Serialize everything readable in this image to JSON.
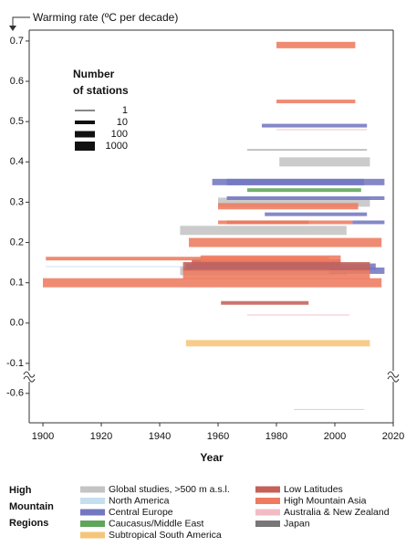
{
  "chart_data": {
    "type": "range-bar",
    "y_label": "Warming rate (ºC per decade)",
    "x_label": "Year",
    "xlim": [
      1895.3,
      2020
    ],
    "xticks": [
      1900,
      1920,
      1940,
      1960,
      1980,
      2000,
      2020
    ],
    "ylim": [
      -0.673,
      0.727
    ],
    "ybreak": [
      -0.13,
      -0.56
    ],
    "yticks": [
      0.7,
      0.6,
      0.5,
      0.4,
      0.3,
      0.2,
      0.1,
      {
        "value": 0,
        "label": "0.0"
      },
      -0.1,
      -0.6
    ],
    "size_legend": {
      "title": [
        "Number",
        "of stations"
      ],
      "values": [
        1,
        10,
        100,
        1000
      ]
    },
    "legend_title": [
      "High",
      "Mountain",
      "Regions"
    ],
    "series": [
      {
        "name": "Global studies, >500 m a.s.l.",
        "color": "#c4c4c4",
        "values": [
          0.4,
          0.3,
          0.23,
          0.13
        ],
        "start": [
          1981,
          1960,
          1947,
          1947
        ],
        "end": [
          2012,
          2012,
          2004,
          2004
        ],
        "stations": [
          1000,
          1000,
          1000,
          1000
        ]
      },
      {
        "name": "North America",
        "color": "#c6dff0",
        "values": [
          0.14
        ],
        "start": [
          1901
        ],
        "end": [
          1991
        ],
        "stations": [
          1
        ]
      },
      {
        "name": "Central Europe",
        "color": "#7478c0",
        "values": [
          0.49,
          0.35,
          0.35,
          0.31,
          0.27,
          0.25,
          0.14,
          0.13
        ],
        "start": [
          1975,
          1958,
          1963,
          1963,
          1976,
          2006,
          1949,
          1998
        ],
        "end": [
          2011,
          2017,
          2010,
          2017,
          2011,
          2017,
          2014,
          2017
        ],
        "stations": [
          10,
          100,
          100,
          10,
          10,
          10,
          100,
          100
        ]
      },
      {
        "name": "Caucasus/Middle East",
        "color": "#5fa55a",
        "values": [
          0.33
        ],
        "start": [
          1970
        ],
        "end": [
          2009
        ],
        "stations": [
          10
        ]
      },
      {
        "name": "Subtropical South America",
        "color": "#f6c57a",
        "values": [
          -0.05
        ],
        "start": [
          1949
        ],
        "end": [
          2012
        ],
        "stations": [
          100
        ]
      },
      {
        "name": "Low Latitudes",
        "color": "#c4625a",
        "values": [
          0.25,
          0.15,
          0.14,
          0.05
        ],
        "start": [
          1963,
          1951,
          1948,
          1961
        ],
        "end": [
          1991,
          2002,
          2012,
          1991
        ],
        "stations": [
          10,
          100,
          1000,
          10
        ]
      },
      {
        "name": "High Mountain Asia",
        "color": "#ee7b60",
        "values": [
          0.69,
          0.55,
          0.29,
          0.25,
          0.2,
          0.16,
          0.16,
          0.12,
          0.1
        ],
        "start": [
          1980,
          1980,
          1960,
          1960,
          1950,
          1901,
          1954,
          1948,
          1900
        ],
        "end": [
          2007,
          2007,
          2008,
          2006,
          2016,
          1998,
          2002,
          2012,
          2016
        ],
        "stations": [
          100,
          10,
          100,
          10,
          1000,
          10,
          100,
          1000,
          1000
        ]
      },
      {
        "name": "Australia & New Zealand",
        "color": "#f2bcc4",
        "values": [
          0.48,
          0.02,
          -0.64
        ],
        "start": [
          1980,
          1970,
          1986
        ],
        "end": [
          2011,
          2005,
          2010
        ],
        "stations": [
          1,
          1,
          1
        ]
      },
      {
        "name": "Japan",
        "color": "#777777",
        "values": [
          0.43
        ],
        "start": [
          1970
        ],
        "end": [
          2011
        ],
        "stations": [
          1
        ]
      }
    ]
  }
}
